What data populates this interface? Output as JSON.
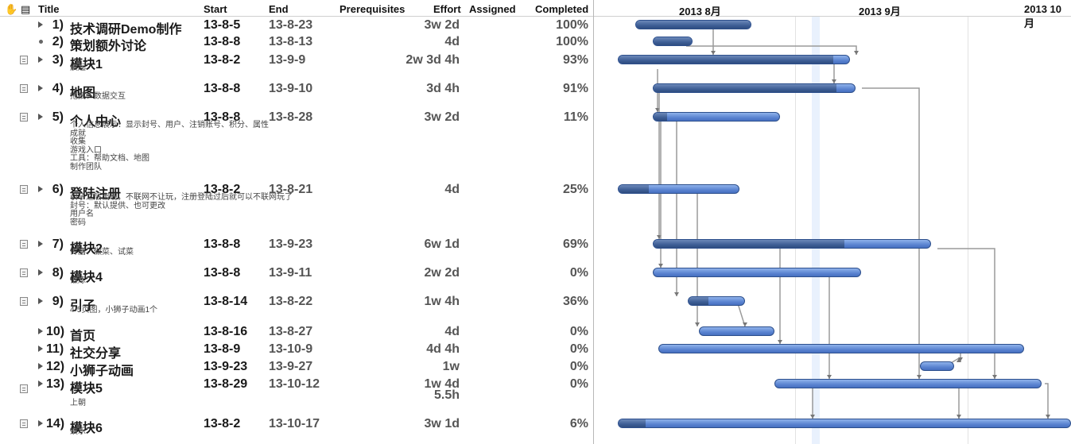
{
  "columns": {
    "title": "Title",
    "start": "Start",
    "end": "End",
    "prerequisites": "Prerequisites",
    "effort": "Effort",
    "assigned": "Assigned",
    "completed": "Completed"
  },
  "timeline": {
    "months": [
      "2013 8月",
      "2013 9月",
      "2013 10月"
    ]
  },
  "tasks": [
    {
      "num": "1)",
      "title": "技术调研Demo制作",
      "start": "13-8-5",
      "end": "13-8-23",
      "effort": "3w 2d",
      "completed": "100%",
      "notes": ""
    },
    {
      "num": "2)",
      "title": "策划额外讨论",
      "start": "13-8-8",
      "end": "13-8-13",
      "effort": "4d",
      "completed": "100%",
      "notes": ""
    },
    {
      "num": "3)",
      "title": "模块1",
      "start": "13-8-2",
      "end": "13-9-9",
      "effort": "2w 3d 4h",
      "completed": "93%",
      "notes": "晨起"
    },
    {
      "num": "4)",
      "title": "地图",
      "start": "13-8-8",
      "end": "13-9-10",
      "effort": "3d 4h",
      "completed": "91%",
      "notes": "拖拽、数据交互"
    },
    {
      "num": "5)",
      "title": "个人中心",
      "start": "13-8-8",
      "end": "13-8-28",
      "effort": "3w 2d",
      "completed": "11%",
      "notes": "个人信息展示：显示封号、用户、注销账号、积分、属性\n成就\n收集\n游戏入口\n工具：帮助文档、地图\n制作团队"
    },
    {
      "num": "6)",
      "title": "登陆注册",
      "start": "13-8-2",
      "end": "13-8-21",
      "effort": "4d",
      "completed": "25%",
      "notes": "引子之后出现，不联网不让玩，注册登陆过后就可以不联网玩了\n封号：默认提供、也可更改\n用户名\n密码"
    },
    {
      "num": "7)",
      "title": "模块2",
      "start": "13-8-8",
      "end": "13-9-23",
      "effort": "6w 1d",
      "completed": "69%",
      "notes": "传膳、做菜、试菜"
    },
    {
      "num": "8)",
      "title": "模块4",
      "start": "13-8-8",
      "end": "13-9-11",
      "effort": "2w 2d",
      "completed": "0%",
      "notes": "锻炼"
    },
    {
      "num": "9)",
      "title": "引子",
      "start": "13-8-14",
      "end": "13-8-22",
      "effort": "1w 4h",
      "completed": "36%",
      "notes": "4-5页图，小狮子动画1个"
    },
    {
      "num": "10)",
      "title": "首页",
      "start": "13-8-16",
      "end": "13-8-27",
      "effort": "4d",
      "completed": "0%",
      "notes": ""
    },
    {
      "num": "11)",
      "title": "社交分享",
      "start": "13-8-9",
      "end": "13-10-9",
      "effort": "4d 4h",
      "completed": "0%",
      "notes": ""
    },
    {
      "num": "12)",
      "title": "小狮子动画",
      "start": "13-9-23",
      "end": "13-9-27",
      "effort": "1w",
      "completed": "0%",
      "notes": ""
    },
    {
      "num": "13)",
      "title": "模块5",
      "start": "13-8-29",
      "end": "13-10-12",
      "effort": "1w 4d",
      "effort2": "5.5h",
      "completed": "0%",
      "notes": "上朝"
    },
    {
      "num": "14)",
      "title": "模块6",
      "start": "13-8-2",
      "end": "13-10-17",
      "effort": "3w 1d",
      "completed": "6%",
      "notes": "娱乐"
    }
  ],
  "icons": {
    "header_icon": "hand-icon",
    "header_note_icon": "note-icon",
    "row_note_icon": "note-icon",
    "disclosure": "triangle-right-icon",
    "leaf": "bullet-icon"
  },
  "colors": {
    "bar": "#5b84d1",
    "bar_done": "#3e5e96",
    "today_band": "#e9f1fd",
    "dependency": "#9a9a9a"
  }
}
